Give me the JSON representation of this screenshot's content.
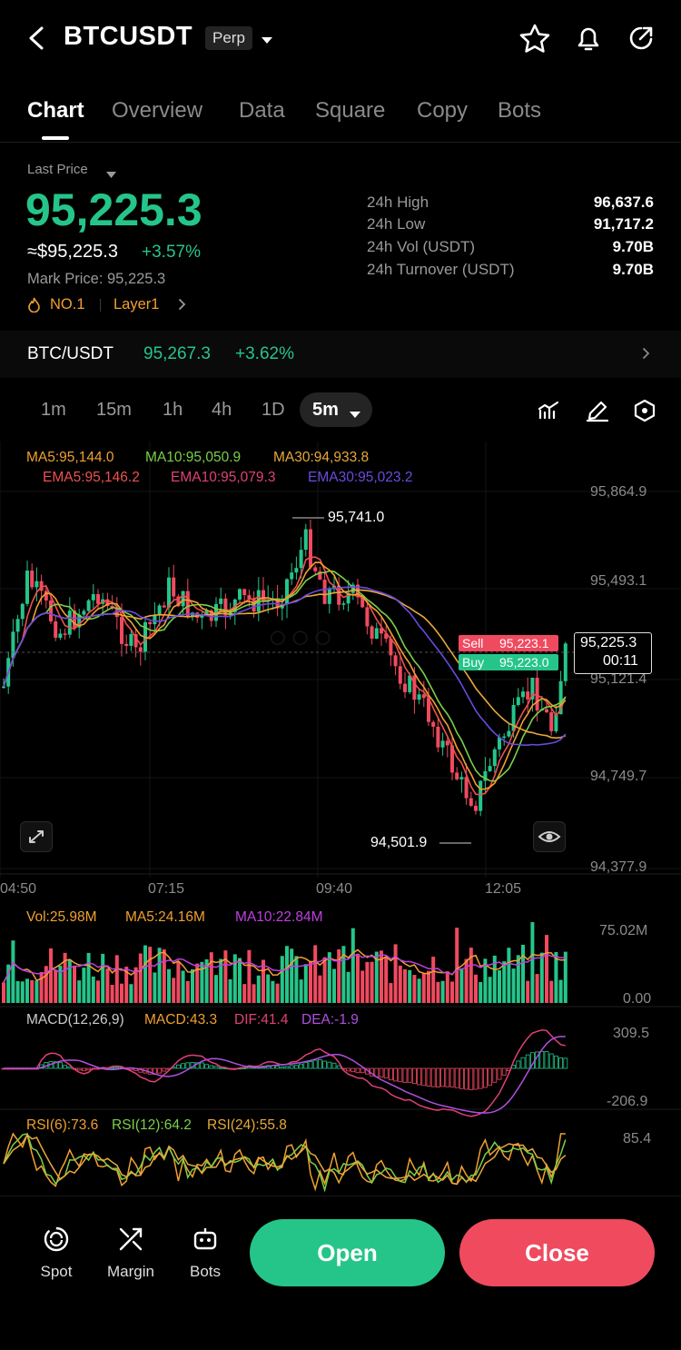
{
  "header": {
    "title": "BTCUSDT",
    "badge": "Perp"
  },
  "tabs": [
    "Chart",
    "Overview",
    "Data",
    "Square",
    "Copy",
    "Bots"
  ],
  "price": {
    "last_label": "Last Price",
    "last": "95,225.3",
    "usd": "≈$95,225.3",
    "change": "+3.57%",
    "mark": "Mark Price: 95,225.3",
    "tag1": "NO.1",
    "tag2": "Layer1"
  },
  "stats": [
    {
      "label": "24h  High",
      "value": "96,637.6"
    },
    {
      "label": "24h  Low",
      "value": "91,717.2"
    },
    {
      "label": "24h  Vol (USDT)",
      "value": "9.70B"
    },
    {
      "label": "24h  Turnover (USDT)",
      "value": "9.70B"
    }
  ],
  "spot_ref": {
    "pair": "BTC/USDT",
    "price": "95,267.3",
    "change": "+3.62%"
  },
  "timeframes": [
    "1m",
    "15m",
    "1h",
    "4h",
    "1D"
  ],
  "timeframe_active": "5m",
  "ma_line": {
    "ma5": "MA5:95,144.0",
    "ma10": "MA10:95,050.9",
    "ma30": "MA30:94,933.8"
  },
  "ema_line": {
    "ema5": "EMA5:95,146.2",
    "ema10": "EMA10:95,079.3",
    "ema30": "EMA30:95,023.2"
  },
  "price_axis": [
    "95,864.9",
    "95,493.1",
    "95,121.4",
    "94,749.7",
    "94,377.9"
  ],
  "time_axis": [
    "04:50",
    "07:15",
    "09:40",
    "12:05"
  ],
  "high_marker": "95,741.0",
  "low_marker": "94,501.9",
  "order_tags": {
    "sell_label": "Sell",
    "sell": "95,223.1",
    "buy_label": "Buy",
    "buy": "95,223.0"
  },
  "current_tag": {
    "price": "95,225.3",
    "countdown": "00:11"
  },
  "vol": {
    "vol": "Vol:25.98M",
    "ma5": "MA5:24.16M",
    "ma10": "MA10:22.84M",
    "max": "75.02M",
    "min": "0.00"
  },
  "macd": {
    "title": "MACD(12,26,9)",
    "macd": "MACD:43.3",
    "dif": "DIF:41.4",
    "dea": "DEA:-1.9",
    "max": "309.5",
    "min": "-206.9"
  },
  "rsi": {
    "r6": "RSI(6):73.6",
    "r12": "RSI(12):64.2",
    "r24": "RSI(24):55.8",
    "max": "85.4"
  },
  "footer": {
    "spot": "Spot",
    "margin": "Margin",
    "bots": "Bots",
    "open": "Open",
    "close": "Close"
  },
  "colors": {
    "up": "#25c58a",
    "down": "#f04a5f",
    "ma5": "#f0a030",
    "ma10": "#7ad04a",
    "ma30": "#e8a83a",
    "ema5": "#f05050",
    "ema10": "#e0407a",
    "ema30": "#6a4ae0"
  }
}
